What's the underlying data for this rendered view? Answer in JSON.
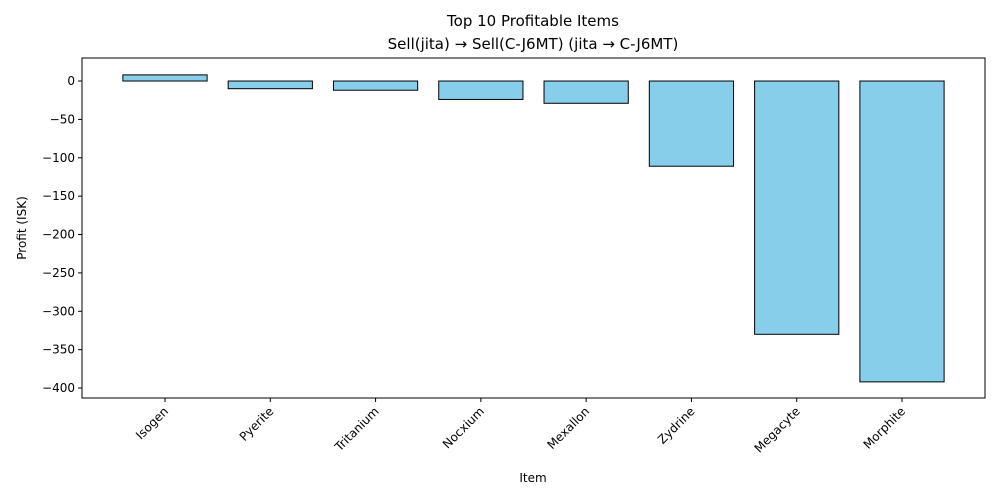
{
  "chart_data": {
    "type": "bar",
    "title": "Top 10 Profitable Items",
    "subtitle": "Sell(jita) → Sell(C-J6MT) (jita → C-J6MT)",
    "xlabel": "Item",
    "ylabel": "Profit (ISK)",
    "categories": [
      "Isogen",
      "Pyerite",
      "Tritanium",
      "Nocxium",
      "Mexallon",
      "Zydrine",
      "Megacyte",
      "Morphite"
    ],
    "values": [
      8,
      -10,
      -12,
      -24,
      -29,
      -111,
      -330,
      -392
    ],
    "ylim": [
      -413,
      30
    ],
    "yticks": [
      0,
      -50,
      -100,
      -150,
      -200,
      -250,
      -300,
      -350,
      -400
    ],
    "grid": false,
    "bar_color": "#87ceeb",
    "edge_color": "#000000"
  }
}
